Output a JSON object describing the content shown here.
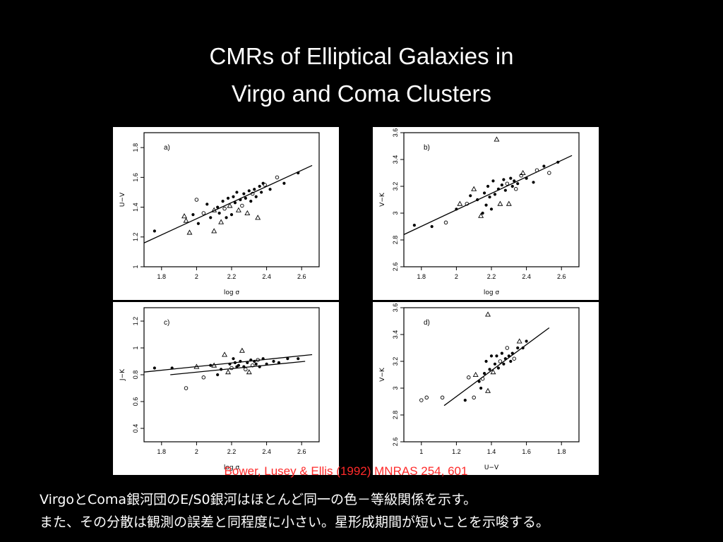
{
  "slide": {
    "title_line1": "CMRs of Elliptical Galaxies in",
    "title_line2": "Virgo and Coma Clusters",
    "citation": "Bower, Lusey & Ellis (1992) MNRAS 254, 601",
    "caption_line1": "VirgoとComa銀河団のE/S0銀河はほとんど同一の色－等級関係を示す。",
    "caption_line2": "また、その分散は観測の誤差と同程度に小さい。星形成期間が短いことを示唆する。"
  },
  "colors": {
    "background": "#000000",
    "panel_bg": "#ffffff",
    "ink": "#000000",
    "title": "#ffffff",
    "citation": "#ff2a2a"
  },
  "chart_data": [
    {
      "type": "scatter",
      "label": "a)",
      "xlabel": "log σ",
      "ylabel": "U−V",
      "xlim": [
        1.7,
        2.7
      ],
      "ylim": [
        1.0,
        1.9
      ],
      "xticks": [
        "1.8",
        "2",
        "2.2",
        "2.4",
        "2.6"
      ],
      "yticks": [
        "1",
        "1.2",
        "1.4",
        "1.6",
        "1.8"
      ],
      "fit_lines": [
        {
          "x": [
            1.7,
            2.66
          ],
          "y": [
            1.16,
            1.68
          ]
        }
      ],
      "points": [
        {
          "x": 1.76,
          "y": 1.24,
          "m": "dot"
        },
        {
          "x": 1.93,
          "y": 1.34,
          "m": "tri"
        },
        {
          "x": 1.94,
          "y": 1.31,
          "m": "tri"
        },
        {
          "x": 1.96,
          "y": 1.23,
          "m": "tri"
        },
        {
          "x": 1.98,
          "y": 1.35,
          "m": "dot"
        },
        {
          "x": 2.0,
          "y": 1.45,
          "m": "ring"
        },
        {
          "x": 2.01,
          "y": 1.29,
          "m": "dot"
        },
        {
          "x": 2.04,
          "y": 1.36,
          "m": "ring"
        },
        {
          "x": 2.06,
          "y": 1.42,
          "m": "dot"
        },
        {
          "x": 2.08,
          "y": 1.33,
          "m": "dot"
        },
        {
          "x": 2.1,
          "y": 1.38,
          "m": "tri"
        },
        {
          "x": 2.1,
          "y": 1.24,
          "m": "tri"
        },
        {
          "x": 2.12,
          "y": 1.4,
          "m": "dot"
        },
        {
          "x": 2.13,
          "y": 1.36,
          "m": "dot"
        },
        {
          "x": 2.14,
          "y": 1.3,
          "m": "tri"
        },
        {
          "x": 2.15,
          "y": 1.44,
          "m": "dot"
        },
        {
          "x": 2.16,
          "y": 1.39,
          "m": "ring"
        },
        {
          "x": 2.17,
          "y": 1.33,
          "m": "dot"
        },
        {
          "x": 2.18,
          "y": 1.46,
          "m": "dot"
        },
        {
          "x": 2.19,
          "y": 1.41,
          "m": "tri"
        },
        {
          "x": 2.2,
          "y": 1.35,
          "m": "dot"
        },
        {
          "x": 2.21,
          "y": 1.47,
          "m": "dot"
        },
        {
          "x": 2.22,
          "y": 1.43,
          "m": "dot"
        },
        {
          "x": 2.23,
          "y": 1.5,
          "m": "dot"
        },
        {
          "x": 2.24,
          "y": 1.38,
          "m": "tri"
        },
        {
          "x": 2.25,
          "y": 1.45,
          "m": "dot"
        },
        {
          "x": 2.26,
          "y": 1.41,
          "m": "ring"
        },
        {
          "x": 2.27,
          "y": 1.49,
          "m": "dot"
        },
        {
          "x": 2.28,
          "y": 1.46,
          "m": "dot"
        },
        {
          "x": 2.29,
          "y": 1.36,
          "m": "tri"
        },
        {
          "x": 2.3,
          "y": 1.51,
          "m": "dot"
        },
        {
          "x": 2.31,
          "y": 1.44,
          "m": "dot"
        },
        {
          "x": 2.32,
          "y": 1.49,
          "m": "ring"
        },
        {
          "x": 2.33,
          "y": 1.52,
          "m": "dot"
        },
        {
          "x": 2.34,
          "y": 1.47,
          "m": "dot"
        },
        {
          "x": 2.35,
          "y": 1.33,
          "m": "tri"
        },
        {
          "x": 2.36,
          "y": 1.54,
          "m": "dot"
        },
        {
          "x": 2.37,
          "y": 1.5,
          "m": "dot"
        },
        {
          "x": 2.38,
          "y": 1.56,
          "m": "dot"
        },
        {
          "x": 2.39,
          "y": 1.55,
          "m": "ring"
        },
        {
          "x": 2.42,
          "y": 1.52,
          "m": "dot"
        },
        {
          "x": 2.46,
          "y": 1.6,
          "m": "ring"
        },
        {
          "x": 2.5,
          "y": 1.56,
          "m": "dot"
        },
        {
          "x": 2.58,
          "y": 1.63,
          "m": "dot"
        }
      ]
    },
    {
      "type": "scatter",
      "label": "b)",
      "xlabel": "log σ",
      "ylabel": "V−K",
      "xlim": [
        1.7,
        2.7
      ],
      "ylim": [
        2.6,
        3.6
      ],
      "xticks": [
        "1.8",
        "2",
        "2.2",
        "2.4",
        "2.6"
      ],
      "yticks": [
        "2.6",
        "2.8",
        "3",
        "3.2",
        "3.4",
        "3.6"
      ],
      "fit_lines": [
        {
          "x": [
            1.7,
            2.66
          ],
          "y": [
            2.84,
            3.43
          ]
        }
      ],
      "points": [
        {
          "x": 1.76,
          "y": 2.91,
          "m": "dot"
        },
        {
          "x": 1.86,
          "y": 2.9,
          "m": "dot"
        },
        {
          "x": 1.94,
          "y": 2.93,
          "m": "ring"
        },
        {
          "x": 2.0,
          "y": 3.03,
          "m": "dot"
        },
        {
          "x": 2.02,
          "y": 3.07,
          "m": "tri"
        },
        {
          "x": 2.06,
          "y": 3.07,
          "m": "ring"
        },
        {
          "x": 2.08,
          "y": 3.13,
          "m": "dot"
        },
        {
          "x": 2.1,
          "y": 3.18,
          "m": "tri"
        },
        {
          "x": 2.12,
          "y": 3.1,
          "m": "dot"
        },
        {
          "x": 2.14,
          "y": 2.98,
          "m": "tri"
        },
        {
          "x": 2.15,
          "y": 3.0,
          "m": "dot"
        },
        {
          "x": 2.16,
          "y": 3.15,
          "m": "dot"
        },
        {
          "x": 2.17,
          "y": 3.06,
          "m": "dot"
        },
        {
          "x": 2.18,
          "y": 3.2,
          "m": "dot"
        },
        {
          "x": 2.19,
          "y": 3.12,
          "m": "dot"
        },
        {
          "x": 2.2,
          "y": 3.03,
          "m": "dot"
        },
        {
          "x": 2.21,
          "y": 3.24,
          "m": "dot"
        },
        {
          "x": 2.22,
          "y": 3.14,
          "m": "dot"
        },
        {
          "x": 2.23,
          "y": 3.55,
          "m": "tri"
        },
        {
          "x": 2.24,
          "y": 3.18,
          "m": "dot"
        },
        {
          "x": 2.25,
          "y": 3.07,
          "m": "tri"
        },
        {
          "x": 2.26,
          "y": 3.21,
          "m": "dot"
        },
        {
          "x": 2.27,
          "y": 3.25,
          "m": "dot"
        },
        {
          "x": 2.28,
          "y": 3.17,
          "m": "dot"
        },
        {
          "x": 2.29,
          "y": 3.22,
          "m": "ring"
        },
        {
          "x": 2.3,
          "y": 3.07,
          "m": "tri"
        },
        {
          "x": 2.31,
          "y": 3.26,
          "m": "dot"
        },
        {
          "x": 2.32,
          "y": 3.2,
          "m": "dot"
        },
        {
          "x": 2.33,
          "y": 3.24,
          "m": "dot"
        },
        {
          "x": 2.34,
          "y": 3.18,
          "m": "ring"
        },
        {
          "x": 2.35,
          "y": 3.22,
          "m": "dot"
        },
        {
          "x": 2.37,
          "y": 3.28,
          "m": "ring"
        },
        {
          "x": 2.38,
          "y": 3.3,
          "m": "tri"
        },
        {
          "x": 2.4,
          "y": 3.26,
          "m": "dot"
        },
        {
          "x": 2.44,
          "y": 3.23,
          "m": "dot"
        },
        {
          "x": 2.46,
          "y": 3.32,
          "m": "ring"
        },
        {
          "x": 2.5,
          "y": 3.35,
          "m": "dot"
        },
        {
          "x": 2.53,
          "y": 3.3,
          "m": "ring"
        },
        {
          "x": 2.58,
          "y": 3.38,
          "m": "dot"
        }
      ]
    },
    {
      "type": "scatter",
      "label": "c)",
      "xlabel": "log σ",
      "ylabel": "J−K",
      "xlim": [
        1.7,
        2.7
      ],
      "ylim": [
        0.3,
        1.3
      ],
      "xticks": [
        "1.8",
        "2",
        "2.2",
        "2.4",
        "2.6"
      ],
      "yticks": [
        "0.4",
        "0.6",
        "0.8",
        "1",
        "1.2"
      ],
      "fit_lines": [
        {
          "x": [
            1.7,
            2.66
          ],
          "y": [
            0.82,
            0.95
          ]
        },
        {
          "x": [
            1.85,
            2.62
          ],
          "y": [
            0.8,
            0.9
          ]
        }
      ],
      "points": [
        {
          "x": 1.76,
          "y": 0.85,
          "m": "dot"
        },
        {
          "x": 1.86,
          "y": 0.85,
          "m": "dot"
        },
        {
          "x": 1.94,
          "y": 0.7,
          "m": "ring"
        },
        {
          "x": 2.0,
          "y": 0.86,
          "m": "tri"
        },
        {
          "x": 2.04,
          "y": 0.78,
          "m": "ring"
        },
        {
          "x": 2.08,
          "y": 0.87,
          "m": "dot"
        },
        {
          "x": 2.1,
          "y": 0.87,
          "m": "tri"
        },
        {
          "x": 2.12,
          "y": 0.8,
          "m": "dot"
        },
        {
          "x": 2.14,
          "y": 0.84,
          "m": "dot"
        },
        {
          "x": 2.16,
          "y": 0.95,
          "m": "tri"
        },
        {
          "x": 2.18,
          "y": 0.82,
          "m": "tri"
        },
        {
          "x": 2.19,
          "y": 0.88,
          "m": "dot"
        },
        {
          "x": 2.2,
          "y": 0.85,
          "m": "ring"
        },
        {
          "x": 2.21,
          "y": 0.92,
          "m": "dot"
        },
        {
          "x": 2.22,
          "y": 0.89,
          "m": "dot"
        },
        {
          "x": 2.23,
          "y": 0.86,
          "m": "dot"
        },
        {
          "x": 2.24,
          "y": 0.87,
          "m": "dot"
        },
        {
          "x": 2.25,
          "y": 0.9,
          "m": "dot"
        },
        {
          "x": 2.26,
          "y": 0.98,
          "m": "tri"
        },
        {
          "x": 2.27,
          "y": 0.86,
          "m": "dot"
        },
        {
          "x": 2.28,
          "y": 0.84,
          "m": "ring"
        },
        {
          "x": 2.29,
          "y": 0.89,
          "m": "dot"
        },
        {
          "x": 2.3,
          "y": 0.82,
          "m": "tri"
        },
        {
          "x": 2.31,
          "y": 0.91,
          "m": "dot"
        },
        {
          "x": 2.32,
          "y": 0.87,
          "m": "ring"
        },
        {
          "x": 2.33,
          "y": 0.9,
          "m": "dot"
        },
        {
          "x": 2.34,
          "y": 0.88,
          "m": "dot"
        },
        {
          "x": 2.35,
          "y": 0.91,
          "m": "ring"
        },
        {
          "x": 2.36,
          "y": 0.86,
          "m": "dot"
        },
        {
          "x": 2.38,
          "y": 0.92,
          "m": "dot"
        },
        {
          "x": 2.4,
          "y": 0.88,
          "m": "dot"
        },
        {
          "x": 2.44,
          "y": 0.9,
          "m": "dot"
        },
        {
          "x": 2.47,
          "y": 0.89,
          "m": "dot"
        },
        {
          "x": 2.52,
          "y": 0.92,
          "m": "dot"
        },
        {
          "x": 2.58,
          "y": 0.92,
          "m": "dot"
        }
      ]
    },
    {
      "type": "scatter",
      "label": "d)",
      "xlabel": "U−V",
      "ylabel": "V−K",
      "xlim": [
        0.9,
        1.9
      ],
      "ylim": [
        2.6,
        3.6
      ],
      "xticks": [
        "1",
        "1.2",
        "1.4",
        "1.6",
        "1.8"
      ],
      "yticks": [
        "2.6",
        "2.8",
        "3",
        "3.2",
        "3.4",
        "3.6"
      ],
      "fit_lines": [
        {
          "x": [
            1.13,
            1.73
          ],
          "y": [
            2.87,
            3.45
          ]
        }
      ],
      "points": [
        {
          "x": 1.0,
          "y": 2.91,
          "m": "ring"
        },
        {
          "x": 1.03,
          "y": 2.93,
          "m": "ring"
        },
        {
          "x": 1.12,
          "y": 2.93,
          "m": "ring"
        },
        {
          "x": 1.25,
          "y": 2.91,
          "m": "dot"
        },
        {
          "x": 1.27,
          "y": 3.08,
          "m": "ring"
        },
        {
          "x": 1.3,
          "y": 2.93,
          "m": "ring"
        },
        {
          "x": 1.31,
          "y": 3.1,
          "m": "tri"
        },
        {
          "x": 1.33,
          "y": 3.05,
          "m": "dot"
        },
        {
          "x": 1.34,
          "y": 3.0,
          "m": "dot"
        },
        {
          "x": 1.35,
          "y": 3.07,
          "m": "ring"
        },
        {
          "x": 1.36,
          "y": 3.11,
          "m": "dot"
        },
        {
          "x": 1.37,
          "y": 3.2,
          "m": "dot"
        },
        {
          "x": 1.38,
          "y": 2.98,
          "m": "tri"
        },
        {
          "x": 1.38,
          "y": 3.55,
          "m": "tri"
        },
        {
          "x": 1.39,
          "y": 3.14,
          "m": "dot"
        },
        {
          "x": 1.4,
          "y": 3.24,
          "m": "dot"
        },
        {
          "x": 1.41,
          "y": 3.12,
          "m": "tri"
        },
        {
          "x": 1.42,
          "y": 3.18,
          "m": "dot"
        },
        {
          "x": 1.43,
          "y": 3.24,
          "m": "dot"
        },
        {
          "x": 1.44,
          "y": 3.15,
          "m": "dot"
        },
        {
          "x": 1.45,
          "y": 3.2,
          "m": "ring"
        },
        {
          "x": 1.46,
          "y": 3.26,
          "m": "dot"
        },
        {
          "x": 1.47,
          "y": 3.18,
          "m": "dot"
        },
        {
          "x": 1.48,
          "y": 3.22,
          "m": "dot"
        },
        {
          "x": 1.49,
          "y": 3.3,
          "m": "ring"
        },
        {
          "x": 1.5,
          "y": 3.24,
          "m": "dot"
        },
        {
          "x": 1.51,
          "y": 3.2,
          "m": "dot"
        },
        {
          "x": 1.52,
          "y": 3.26,
          "m": "dot"
        },
        {
          "x": 1.53,
          "y": 3.22,
          "m": "ring"
        },
        {
          "x": 1.55,
          "y": 3.3,
          "m": "dot"
        },
        {
          "x": 1.56,
          "y": 3.35,
          "m": "tri"
        },
        {
          "x": 1.58,
          "y": 3.3,
          "m": "dot"
        },
        {
          "x": 1.6,
          "y": 3.35,
          "m": "dot"
        }
      ]
    }
  ]
}
